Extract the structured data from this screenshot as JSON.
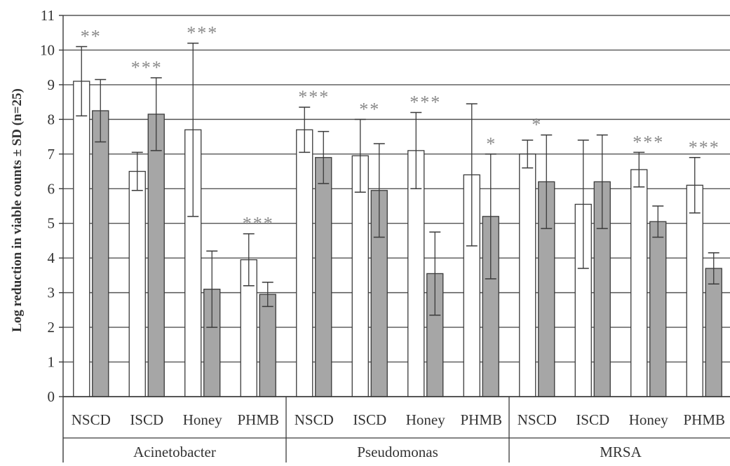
{
  "chart_data": {
    "type": "bar",
    "ylabel": "Log reduction in viable counts ± SD (n=25)",
    "ylim": [
      0,
      11
    ],
    "yticks": [
      0,
      1,
      2,
      3,
      4,
      5,
      6,
      7,
      8,
      9,
      10,
      11
    ],
    "grid": true,
    "legend": "none",
    "groups": [
      {
        "name": "Acinetobacter",
        "categories": [
          {
            "label": "NSCD",
            "white": 9.1,
            "white_sd": 1.0,
            "gray": 8.25,
            "gray_sd": 0.9,
            "sig": "**"
          },
          {
            "label": "ISCD",
            "white": 6.5,
            "white_sd": 0.55,
            "gray": 8.15,
            "gray_sd": 1.05,
            "sig": "***"
          },
          {
            "label": "Honey",
            "white": 7.7,
            "white_sd": 2.5,
            "gray": 3.1,
            "gray_sd": 1.1,
            "sig": "***"
          },
          {
            "label": "PHMB",
            "white": 3.95,
            "white_sd": 0.75,
            "gray": 2.95,
            "gray_sd": 0.35,
            "sig": "***"
          }
        ]
      },
      {
        "name": "Pseudomonas",
        "categories": [
          {
            "label": "NSCD",
            "white": 7.7,
            "white_sd": 0.65,
            "gray": 6.9,
            "gray_sd": 0.75,
            "sig": "***"
          },
          {
            "label": "ISCD",
            "white": 6.95,
            "white_sd": 1.05,
            "gray": 5.95,
            "gray_sd": 1.35,
            "sig": "**"
          },
          {
            "label": "Honey",
            "white": 7.1,
            "white_sd": 1.1,
            "gray": 3.55,
            "gray_sd": 1.2,
            "sig": "***"
          },
          {
            "label": "PHMB",
            "white": 6.4,
            "white_sd": 2.05,
            "gray": 5.2,
            "gray_sd": 1.8,
            "sig_gray": "*"
          }
        ]
      },
      {
        "name": "MRSA",
        "categories": [
          {
            "label": "NSCD",
            "white": 7.0,
            "white_sd": 0.4,
            "gray": 6.2,
            "gray_sd": 1.35,
            "sig": "*"
          },
          {
            "label": "ISCD",
            "white": 5.55,
            "white_sd": 1.85,
            "gray": 6.2,
            "gray_sd": 1.35
          },
          {
            "label": "Honey",
            "white": 6.55,
            "white_sd": 0.5,
            "gray": 5.05,
            "gray_sd": 0.45,
            "sig": "***"
          },
          {
            "label": "PHMB",
            "white": 6.1,
            "white_sd": 0.8,
            "gray": 3.7,
            "gray_sd": 0.45,
            "sig": "***"
          }
        ]
      }
    ],
    "colors": {
      "white_bar": "#ffffff",
      "gray_bar": "#a6a6a6",
      "stroke": "#3a3a3a",
      "grid": "#555555",
      "asterisk": "#8a8a8a"
    }
  }
}
